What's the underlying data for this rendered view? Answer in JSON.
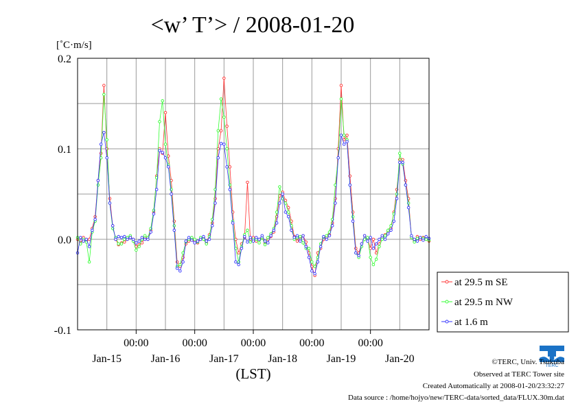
{
  "footer": {
    "copyright": "©TERC, Univ. Tsukuba",
    "observed": "Observed at TERC Tower site",
    "created": "Created Automatically at 2008-01-20/23:32:27",
    "source": "Data source : /home/hojyo/new/TERC-data/sorted_data/FLUX.30m.dat"
  },
  "logo": {
    "text": "TERC"
  },
  "chart_data": {
    "type": "line",
    "title": "<w’ T’> / 2008-01-20",
    "ylabel": "[˚C·m/s]",
    "xlabel": "(LST)",
    "ylim": [
      -0.1,
      0.2
    ],
    "yticks": [
      -0.1,
      0.0,
      0.1,
      0.2
    ],
    "ytick_labels": [
      "-0.1",
      "0.0",
      "0.1",
      "0.2"
    ],
    "xlim": [
      0,
      6
    ],
    "xticks": [
      1,
      2,
      3,
      4,
      5
    ],
    "xtick_time_labels": [
      "00:00",
      "00:00",
      "00:00",
      "00:00",
      "00:00"
    ],
    "day_labels": [
      {
        "x": 0.5,
        "label": "Jan-15"
      },
      {
        "x": 1.5,
        "label": "Jan-16"
      },
      {
        "x": 2.5,
        "label": "Jan-17"
      },
      {
        "x": 3.5,
        "label": "Jan-18"
      },
      {
        "x": 4.5,
        "label": "Jan-19"
      },
      {
        "x": 5.5,
        "label": "Jan-20"
      }
    ],
    "grid": true,
    "legend_position": "outside-right-bottom",
    "series": [
      {
        "name": "at 29.5 m SE",
        "color": "#ff3030",
        "x": [
          0.0,
          0.05,
          0.1,
          0.15,
          0.2,
          0.25,
          0.3,
          0.35,
          0.4,
          0.45,
          0.5,
          0.55,
          0.6,
          0.65,
          0.7,
          0.75,
          0.8,
          0.85,
          0.9,
          0.95,
          1.0,
          1.05,
          1.1,
          1.15,
          1.2,
          1.25,
          1.3,
          1.35,
          1.4,
          1.45,
          1.5,
          1.55,
          1.6,
          1.65,
          1.7,
          1.75,
          1.8,
          1.85,
          1.9,
          1.95,
          2.0,
          2.05,
          2.1,
          2.15,
          2.2,
          2.25,
          2.3,
          2.35,
          2.4,
          2.45,
          2.5,
          2.55,
          2.6,
          2.65,
          2.7,
          2.75,
          2.8,
          2.85,
          2.9,
          2.95,
          3.0,
          3.05,
          3.1,
          3.15,
          3.2,
          3.25,
          3.3,
          3.35,
          3.4,
          3.45,
          3.5,
          3.55,
          3.6,
          3.65,
          3.7,
          3.75,
          3.8,
          3.85,
          3.9,
          3.95,
          4.0,
          4.05,
          4.1,
          4.15,
          4.2,
          4.25,
          4.3,
          4.35,
          4.4,
          4.45,
          4.5,
          4.55,
          4.6,
          4.65,
          4.7,
          4.75,
          4.8,
          4.85,
          4.9,
          4.95,
          5.0,
          5.05,
          5.1,
          5.15,
          5.2,
          5.25,
          5.3,
          5.35,
          5.4,
          5.45,
          5.5,
          5.55,
          5.6,
          5.65,
          5.7,
          5.75,
          5.8,
          5.85,
          5.9,
          5.95,
          6.0
        ],
        "y": [
          0.0,
          -0.004,
          0.002,
          -0.002,
          0.0,
          0.012,
          0.025,
          0.065,
          0.095,
          0.17,
          0.1,
          0.045,
          0.015,
          0.0,
          -0.006,
          -0.004,
          -0.003,
          0.0,
          0.003,
          0.0,
          -0.008,
          -0.006,
          -0.004,
          0.002,
          0.0,
          0.01,
          0.03,
          0.07,
          0.1,
          0.095,
          0.14,
          0.092,
          0.065,
          0.02,
          -0.025,
          -0.03,
          -0.02,
          -0.005,
          -0.002,
          0.0,
          -0.002,
          -0.004,
          0.0,
          0.002,
          -0.004,
          0.005,
          0.018,
          0.045,
          0.1,
          0.12,
          0.178,
          0.125,
          0.08,
          0.03,
          0.0,
          -0.015,
          -0.005,
          0.002,
          0.063,
          0.0,
          0.002,
          -0.002,
          0.0,
          0.002,
          -0.004,
          0.0,
          0.003,
          0.008,
          0.025,
          0.048,
          0.052,
          0.043,
          0.035,
          0.02,
          0.003,
          -0.002,
          0.0,
          0.004,
          -0.003,
          -0.015,
          -0.03,
          -0.04,
          -0.015,
          -0.01,
          0.0,
          0.002,
          0.005,
          0.018,
          0.045,
          0.1,
          0.17,
          0.11,
          0.115,
          0.07,
          0.03,
          -0.01,
          -0.015,
          -0.005,
          0.004,
          0.0,
          -0.01,
          0.0,
          -0.015,
          -0.005,
          0.002,
          0.005,
          0.008,
          0.012,
          0.03,
          0.055,
          0.088,
          0.088,
          0.065,
          0.045,
          0.002,
          -0.002,
          0.003,
          0.0,
          0.002,
          0.0,
          -0.002
        ]
      },
      {
        "name": "at 29.5 m NW",
        "color": "#30ff30",
        "x": [
          0.0,
          0.05,
          0.1,
          0.15,
          0.2,
          0.25,
          0.3,
          0.35,
          0.4,
          0.45,
          0.5,
          0.55,
          0.6,
          0.65,
          0.7,
          0.75,
          0.8,
          0.85,
          0.9,
          0.95,
          1.0,
          1.05,
          1.1,
          1.15,
          1.2,
          1.25,
          1.3,
          1.35,
          1.4,
          1.45,
          1.5,
          1.55,
          1.6,
          1.65,
          1.7,
          1.75,
          1.8,
          1.85,
          1.9,
          1.95,
          2.0,
          2.05,
          2.1,
          2.15,
          2.2,
          2.25,
          2.3,
          2.35,
          2.4,
          2.45,
          2.5,
          2.55,
          2.6,
          2.65,
          2.7,
          2.75,
          2.8,
          2.85,
          2.9,
          2.95,
          3.0,
          3.05,
          3.1,
          3.15,
          3.2,
          3.25,
          3.3,
          3.35,
          3.4,
          3.45,
          3.5,
          3.55,
          3.6,
          3.65,
          3.7,
          3.75,
          3.8,
          3.85,
          3.9,
          3.95,
          4.0,
          4.05,
          4.1,
          4.15,
          4.2,
          4.25,
          4.3,
          4.35,
          4.4,
          4.45,
          4.5,
          4.55,
          4.6,
          4.65,
          4.7,
          4.75,
          4.8,
          4.85,
          4.9,
          4.95,
          5.0,
          5.05,
          5.1,
          5.15,
          5.2,
          5.25,
          5.3,
          5.35,
          5.4,
          5.45,
          5.5,
          5.55,
          5.6,
          5.65,
          5.7,
          5.75,
          5.8,
          5.85,
          5.9,
          5.95,
          6.0
        ],
        "y": [
          0.002,
          -0.005,
          0.0,
          -0.003,
          -0.025,
          0.008,
          0.02,
          0.06,
          0.09,
          0.16,
          0.11,
          0.04,
          0.012,
          0.002,
          -0.005,
          -0.005,
          0.0,
          0.002,
          0.004,
          -0.002,
          -0.012,
          -0.008,
          0.0,
          0.004,
          0.002,
          0.012,
          0.032,
          0.068,
          0.13,
          0.153,
          0.105,
          0.082,
          0.055,
          0.015,
          -0.03,
          -0.028,
          -0.015,
          -0.003,
          0.0,
          0.002,
          0.0,
          -0.003,
          0.002,
          0.0,
          -0.005,
          0.003,
          0.022,
          0.055,
          0.12,
          0.155,
          0.135,
          0.1,
          0.06,
          0.02,
          -0.01,
          -0.025,
          -0.008,
          0.005,
          0.01,
          -0.003,
          0.0,
          0.0,
          -0.004,
          0.002,
          -0.006,
          0.002,
          0.006,
          0.012,
          0.03,
          0.058,
          0.045,
          0.04,
          0.03,
          0.015,
          0.0,
          0.002,
          0.003,
          -0.004,
          -0.01,
          -0.01,
          -0.025,
          -0.03,
          -0.02,
          -0.005,
          0.002,
          0.004,
          0.008,
          0.022,
          0.06,
          0.09,
          0.155,
          0.115,
          0.11,
          0.06,
          0.025,
          -0.015,
          -0.02,
          -0.008,
          0.0,
          0.002,
          -0.02,
          -0.028,
          -0.022,
          -0.008,
          0.0,
          0.004,
          0.01,
          0.015,
          0.028,
          0.05,
          0.095,
          0.083,
          0.06,
          0.04,
          0.002,
          -0.003,
          0.001,
          0.002,
          0.001,
          0.0,
          -0.001
        ]
      },
      {
        "name": "at 1.6 m",
        "color": "#3030ff",
        "x": [
          0.0,
          0.05,
          0.1,
          0.15,
          0.2,
          0.25,
          0.3,
          0.35,
          0.4,
          0.45,
          0.5,
          0.55,
          0.6,
          0.65,
          0.7,
          0.75,
          0.8,
          0.85,
          0.9,
          0.95,
          1.0,
          1.05,
          1.1,
          1.15,
          1.2,
          1.25,
          1.3,
          1.35,
          1.4,
          1.45,
          1.5,
          1.55,
          1.6,
          1.65,
          1.7,
          1.75,
          1.8,
          1.85,
          1.9,
          1.95,
          2.0,
          2.05,
          2.1,
          2.15,
          2.2,
          2.25,
          2.3,
          2.35,
          2.4,
          2.45,
          2.5,
          2.55,
          2.6,
          2.65,
          2.7,
          2.75,
          2.8,
          2.85,
          2.9,
          2.95,
          3.0,
          3.05,
          3.1,
          3.15,
          3.2,
          3.25,
          3.3,
          3.35,
          3.4,
          3.45,
          3.5,
          3.55,
          3.6,
          3.65,
          3.7,
          3.75,
          3.8,
          3.85,
          3.9,
          3.95,
          4.0,
          4.05,
          4.1,
          4.15,
          4.2,
          4.25,
          4.3,
          4.35,
          4.4,
          4.45,
          4.5,
          4.55,
          4.6,
          4.65,
          4.7,
          4.75,
          4.8,
          4.85,
          4.9,
          4.95,
          5.0,
          5.05,
          5.1,
          5.15,
          5.2,
          5.25,
          5.3,
          5.35,
          5.4,
          5.45,
          5.5,
          5.55,
          5.6,
          5.65,
          5.7,
          5.75,
          5.8,
          5.85,
          5.9,
          5.95,
          6.0
        ],
        "y": [
          -0.015,
          0.002,
          -0.002,
          0.0,
          -0.008,
          0.01,
          0.022,
          0.065,
          0.105,
          0.118,
          0.09,
          0.04,
          0.015,
          0.0,
          0.003,
          0.002,
          0.003,
          0.0,
          0.002,
          0.0,
          -0.004,
          -0.002,
          0.002,
          0.0,
          0.0,
          0.008,
          0.028,
          0.055,
          0.098,
          0.096,
          0.09,
          0.08,
          0.05,
          0.01,
          -0.032,
          -0.035,
          -0.025,
          -0.002,
          0.002,
          -0.001,
          -0.004,
          -0.002,
          0.0,
          0.003,
          -0.002,
          0.0,
          0.015,
          0.04,
          0.09,
          0.106,
          0.105,
          0.08,
          0.055,
          0.018,
          -0.025,
          -0.028,
          -0.01,
          0.003,
          -0.003,
          0.002,
          -0.002,
          0.002,
          0.0,
          0.004,
          -0.002,
          -0.004,
          0.004,
          0.01,
          0.018,
          0.04,
          0.05,
          0.03,
          0.025,
          0.01,
          0.002,
          0.004,
          -0.002,
          0.004,
          -0.008,
          -0.02,
          -0.035,
          -0.038,
          -0.025,
          -0.008,
          0.003,
          0.0,
          0.004,
          0.015,
          0.04,
          0.09,
          0.115,
          0.105,
          0.108,
          0.06,
          0.02,
          -0.015,
          -0.018,
          -0.005,
          0.004,
          -0.002,
          0.002,
          -0.01,
          -0.005,
          0.0,
          0.004,
          0.0,
          0.006,
          0.01,
          0.02,
          0.045,
          0.085,
          0.085,
          0.06,
          0.035,
          0.004,
          0.0,
          -0.002,
          0.002,
          -0.001,
          0.003,
          0.001
        ]
      }
    ]
  }
}
